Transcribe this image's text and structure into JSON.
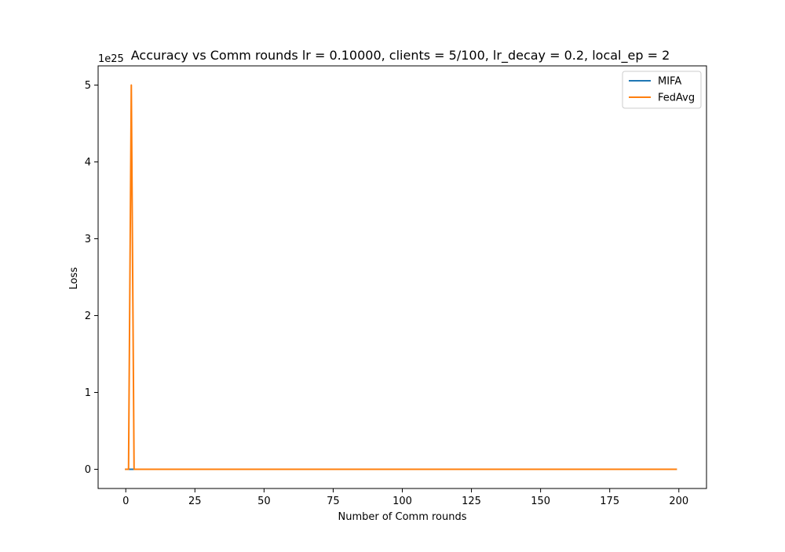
{
  "chart_data": {
    "type": "line",
    "title": "Accuracy vs Comm rounds lr = 0.10000, clients = 5/100, lr_decay = 0.2, local_ep = 2",
    "xlabel": "Number of Comm rounds",
    "ylabel": "Loss",
    "y_offset_label": "1e25",
    "xlim": [
      -10,
      210
    ],
    "ylim": [
      -0.25,
      5.25
    ],
    "xticks": [
      0,
      25,
      50,
      75,
      100,
      125,
      150,
      175,
      200
    ],
    "yticks": [
      0,
      1,
      2,
      3,
      4,
      5
    ],
    "xtick_labels": [
      "0",
      "25",
      "50",
      "75",
      "100",
      "125",
      "150",
      "175",
      "200"
    ],
    "ytick_labels": [
      "0",
      "1",
      "2",
      "3",
      "4",
      "5"
    ],
    "grid": false,
    "legend_position": "top-right",
    "series": [
      {
        "name": "MIFA",
        "color": "#1f77b4",
        "x": [
          0,
          199
        ],
        "y": [
          0,
          0
        ]
      },
      {
        "name": "FedAvg",
        "color": "#ff7f0e",
        "x": [
          0,
          1,
          2,
          3,
          4,
          199
        ],
        "y": [
          0,
          0,
          5.0,
          0,
          0,
          0
        ]
      }
    ]
  }
}
